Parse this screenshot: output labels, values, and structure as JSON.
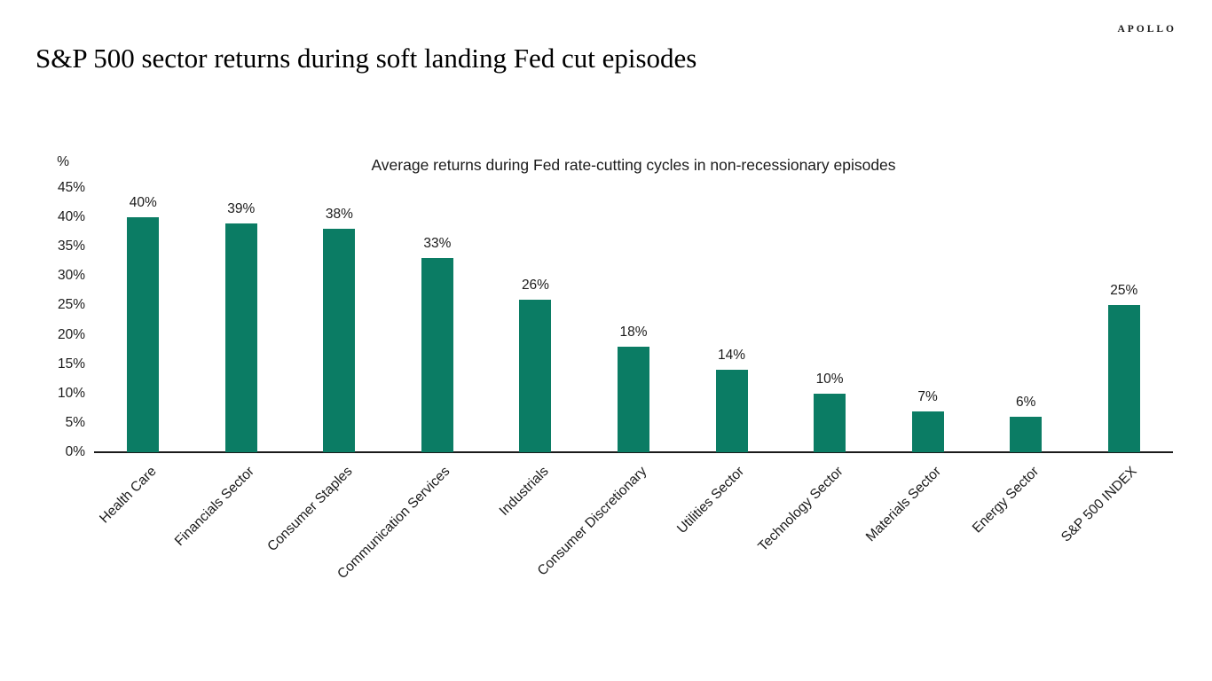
{
  "page": {
    "logo": "APOLLO",
    "title": "S&P 500 sector returns during soft landing Fed cut episodes"
  },
  "chart_data": {
    "type": "bar",
    "title": "Average returns during Fed rate-cutting cycles in non-recessionary episodes",
    "unit_label": "%",
    "categories": [
      "Health Care",
      "Financials Sector",
      "Consumer Staples",
      "Communication Services",
      "Industrials",
      "Consumer Discretionary",
      "Utilities Sector",
      "Technology Sector",
      "Materials Sector",
      "Energy Sector",
      "S&P 500 INDEX"
    ],
    "values": [
      40,
      39,
      38,
      33,
      26,
      18,
      14,
      10,
      7,
      6,
      25
    ],
    "data_labels": [
      "40%",
      "39%",
      "38%",
      "33%",
      "26%",
      "18%",
      "14%",
      "10%",
      "7%",
      "6%",
      "25%"
    ],
    "ylim": [
      0,
      45
    ],
    "ytick_labels": [
      "0%",
      "5%",
      "10%",
      "15%",
      "20%",
      "25%",
      "30%",
      "35%",
      "40%",
      "45%"
    ],
    "ytick_values": [
      0,
      5,
      10,
      15,
      20,
      25,
      30,
      35,
      40,
      45
    ],
    "grid": false,
    "legend": false,
    "bar_color": "#0b7c64",
    "axis_color": "#1a1a1a",
    "text_color": "#1a1a1a"
  }
}
